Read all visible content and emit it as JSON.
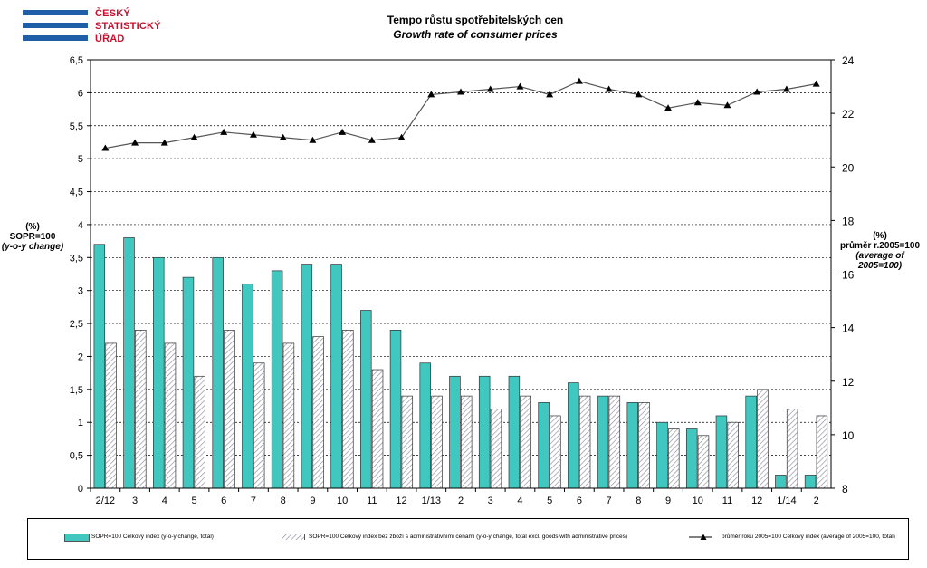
{
  "logo": {
    "line1": "ČESKÝ",
    "line2": "STATISTICKÝ",
    "line3": "ÚŘAD"
  },
  "title": {
    "line1": "Tempo růstu spotřebitelských cen",
    "line2": "Growth rate of consumer prices"
  },
  "ylabel_left": {
    "line1": "(%)",
    "line2": "SOPR=100",
    "line3": "(y-o-y change)"
  },
  "ylabel_right": {
    "line1": "(%)",
    "line2": "průměr r.2005=100",
    "line3": "(average of 2005=100)"
  },
  "colors": {
    "bar_total": "#40c8c0",
    "hatch": "#8c8ca0",
    "line": "#000000"
  },
  "chart_data": {
    "type": "bar+line",
    "categories": [
      "2/12",
      "3",
      "4",
      "5",
      "6",
      "7",
      "8",
      "9",
      "10",
      "11",
      "12",
      "1/13",
      "2",
      "3",
      "4",
      "5",
      "6",
      "7",
      "8",
      "9",
      "10",
      "11",
      "12",
      "1/14",
      "2"
    ],
    "series": [
      {
        "name": "SOPR=100 Celkový index (y-o-y change, total)",
        "axis": "left",
        "style": "solid",
        "values": [
          3.7,
          3.8,
          3.5,
          3.2,
          3.5,
          3.1,
          3.3,
          3.4,
          3.4,
          2.7,
          2.4,
          1.9,
          1.7,
          1.7,
          1.7,
          1.3,
          1.6,
          1.4,
          1.3,
          1.0,
          0.9,
          1.1,
          1.4,
          0.2,
          0.2
        ]
      },
      {
        "name": "SOPR=100 Celkový index bez zboží s administrativními cenami (y-o-y change, total excl. goods with administrative prices)",
        "axis": "left",
        "style": "hatched",
        "values": [
          2.2,
          2.4,
          2.2,
          1.7,
          2.4,
          1.9,
          2.2,
          2.3,
          2.4,
          1.8,
          1.4,
          1.4,
          1.4,
          1.2,
          1.4,
          1.1,
          1.4,
          1.4,
          1.3,
          0.9,
          0.8,
          1.0,
          1.5,
          1.2,
          1.1
        ]
      },
      {
        "name": "průměr roku 2005=100 Celkový index (average of 2005=100, total)",
        "axis": "right",
        "style": "line-triangle",
        "values": [
          20.7,
          20.9,
          20.9,
          21.1,
          21.3,
          21.2,
          21.1,
          21.0,
          21.3,
          21.0,
          21.1,
          22.7,
          22.8,
          22.9,
          23.0,
          22.7,
          23.2,
          22.9,
          22.7,
          22.2,
          22.4,
          22.3,
          22.8,
          22.9,
          23.1
        ]
      }
    ],
    "y_left": {
      "min": 0,
      "max": 6.5,
      "step": 0.5,
      "ticks": [
        "0",
        "0,5",
        "1",
        "1,5",
        "2",
        "2,5",
        "3",
        "3,5",
        "4",
        "4,5",
        "5",
        "5,5",
        "6",
        "6,5"
      ]
    },
    "y_right": {
      "min": 8,
      "max": 24,
      "step": 2,
      "ticks": [
        "8",
        "10",
        "12",
        "14",
        "16",
        "18",
        "20",
        "22",
        "24"
      ]
    },
    "grid": "horizontal-dashed",
    "legend_placement": "bottom"
  }
}
